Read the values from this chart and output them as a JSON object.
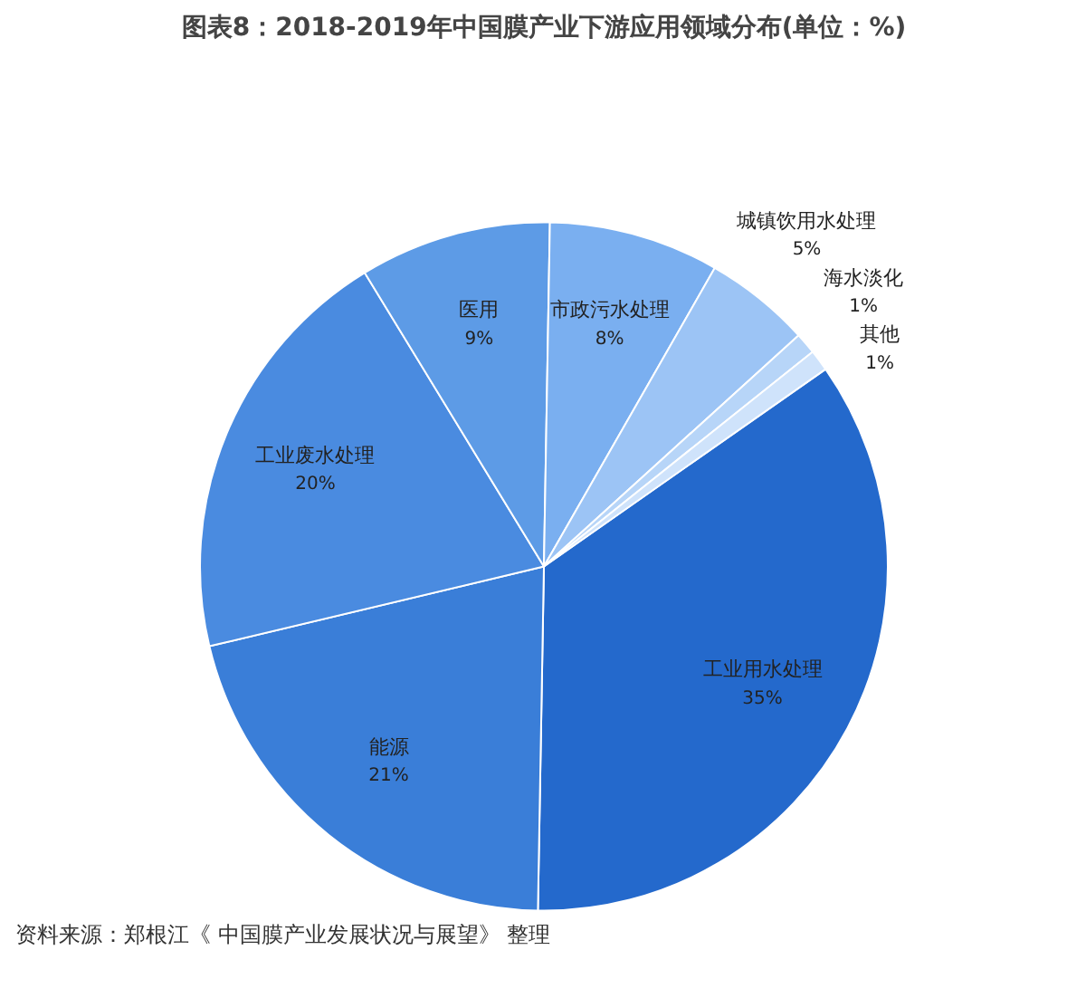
{
  "chart_data": {
    "type": "pie",
    "title": "图表8：2018-2019年中国膜产业下游应用领域分布(单位：%)",
    "categories": [
      "工业用水处理",
      "能源",
      "工业废水处理",
      "医用",
      "市政污水处理",
      "城镇饮用水处理",
      "海水淡化",
      "其他"
    ],
    "values": [
      35,
      21,
      20,
      9,
      8,
      5,
      1,
      1
    ],
    "value_labels": [
      "35%",
      "21%",
      "20%",
      "9%",
      "8%",
      "5%",
      "1%",
      "1%"
    ],
    "colors": [
      "#2469cc",
      "#3a7ed8",
      "#4a8be0",
      "#5d9be6",
      "#7aaff0",
      "#9cc4f5",
      "#b7d5f8",
      "#cfe3fb"
    ],
    "annotations": [
      "资料来源：郑根江《 中国膜产业发展状况与展望》 整理"
    ]
  }
}
